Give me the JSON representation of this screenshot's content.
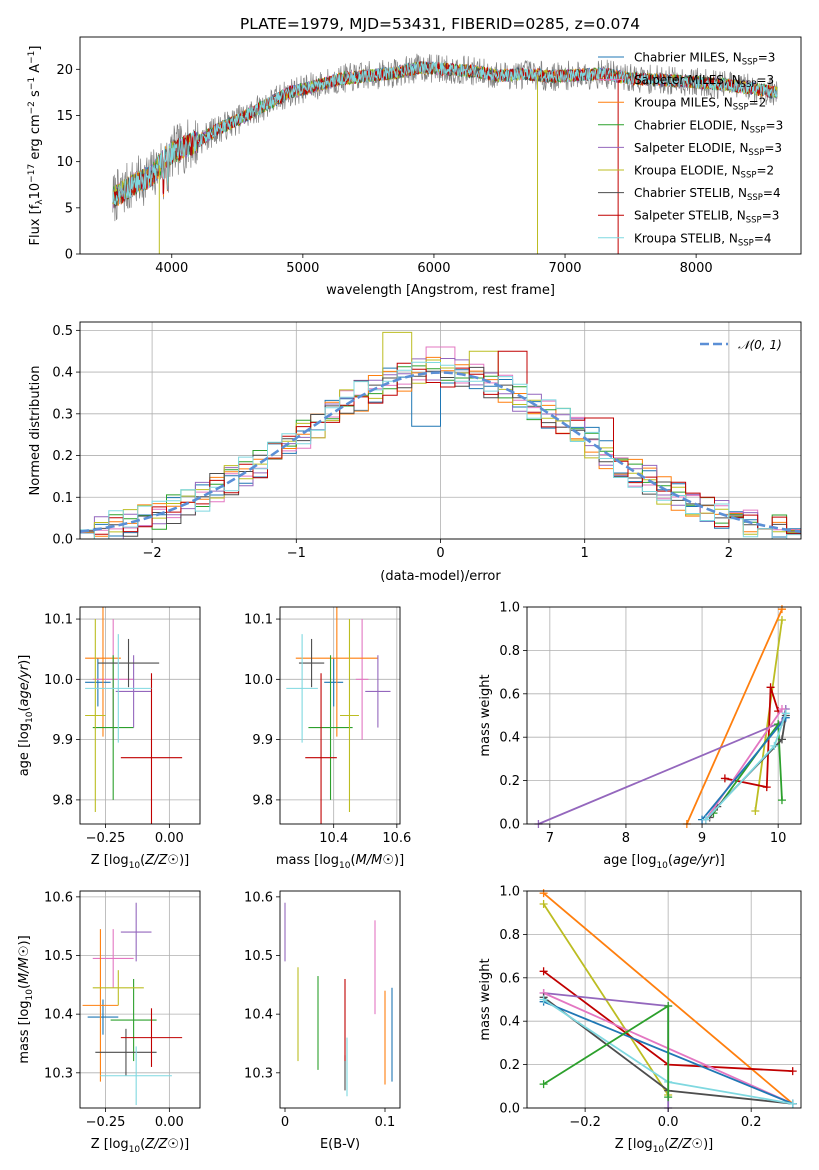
{
  "figure_title": "PLATE=1979, MJD=53431, FIBERID=0285, z=0.074",
  "colors": {
    "Chabrier MILES": "#1f77b4",
    "Salpeter MILES": "#e377c2",
    "Kroupa MILES": "#ff7f0e",
    "Chabrier ELODIE": "#2ca02c",
    "Salpeter ELODIE": "#9467bd",
    "Kroupa ELODIE": "#bcbd22",
    "Chabrier STELIB": "#4d4d4d",
    "Salpeter STELIB": "#c00000",
    "Kroupa STELIB": "#7fd8e0",
    "grid": "#b0b0b0",
    "normal_curve": "#5b8fd6"
  },
  "chart_data": [
    {
      "type": "line",
      "panel": "spectrum",
      "title": "PLATE=1979, MJD=53431, FIBERID=0285, z=0.074",
      "xlabel": "wavelength [Angstrom, rest frame]",
      "ylabel_parts": [
        "Flux [f",
        "λ",
        "10",
        "−17",
        " erg cm",
        "−2",
        " s",
        "−1",
        " A",
        "−1",
        "]"
      ],
      "xlim": [
        3300,
        8800
      ],
      "ylim": [
        0,
        23.5
      ],
      "xticks": [
        4000,
        5000,
        6000,
        7000,
        8000
      ],
      "yticks": [
        0,
        5,
        10,
        15,
        20
      ],
      "grid": false,
      "legend_position": "right",
      "legend": [
        {
          "model": "Chabrier MILES",
          "nssp": "3"
        },
        {
          "model": "Salpeter MILES",
          "nssp": "3"
        },
        {
          "model": "Kroupa MILES",
          "nssp": "2"
        },
        {
          "model": "Chabrier ELODIE",
          "nssp": "3"
        },
        {
          "model": "Salpeter ELODIE",
          "nssp": "3"
        },
        {
          "model": "Kroupa ELODIE",
          "nssp": "2"
        },
        {
          "model": "Chabrier STELIB",
          "nssp": "4"
        },
        {
          "model": "Salpeter STELIB",
          "nssp": "3"
        },
        {
          "model": "Kroupa STELIB",
          "nssp": "4"
        }
      ],
      "legend_nssp_prefix": "N",
      "legend_nssp_sub": "SSP",
      "continuum": {
        "x": [
          3550,
          3700,
          3850,
          3950,
          4050,
          4200,
          4350,
          4500,
          4700,
          4900,
          5100,
          5300,
          5500,
          5700,
          5900,
          6100,
          6300,
          6500,
          6700,
          6900,
          7100,
          7300,
          7500,
          7800,
          8100,
          8400,
          8600
        ],
        "y": [
          6.0,
          7.5,
          8.5,
          10.5,
          11.3,
          12.2,
          13.5,
          14.5,
          16.0,
          17.5,
          18.2,
          19.0,
          19.3,
          19.6,
          20.2,
          20.0,
          19.8,
          19.3,
          19.5,
          19.2,
          19.4,
          19.5,
          19.0,
          18.8,
          18.5,
          18.0,
          17.5
        ]
      },
      "observed_color": "#808080",
      "dropouts": [
        {
          "model": "Kroupa ELODIE",
          "x": 3905,
          "to": 0
        },
        {
          "model": "Kroupa ELODIE",
          "x": 6790,
          "to": 0
        },
        {
          "model": "Salpeter STELIB",
          "x": 7405,
          "to": 0
        }
      ]
    },
    {
      "type": "histogram",
      "panel": "residuals",
      "xlabel": "(data-model)/error",
      "ylabel": "Normed distribution",
      "xlim": [
        -2.5,
        2.5
      ],
      "ylim": [
        0,
        0.52
      ],
      "xticks": [
        -2,
        -1,
        0,
        1,
        2
      ],
      "yticks": [
        0.0,
        0.1,
        0.2,
        0.3,
        0.4,
        0.5
      ],
      "grid": true,
      "legend_position": "top-right",
      "legend": "𝒩(0, 1)",
      "bin_width": 0.1,
      "bin_start": -2.5,
      "reference_curve": "normal(0,1)",
      "outlier_bins": [
        {
          "model": "Kroupa ELODIE",
          "x": -0.3,
          "y": 0.495
        },
        {
          "model": "Kroupa ELODIE",
          "x": 0.3,
          "y": 0.45
        },
        {
          "model": "Salpeter MILES",
          "x": 0.0,
          "y": 0.46
        },
        {
          "model": "Chabrier MILES",
          "x": -0.1,
          "y": 0.27
        },
        {
          "model": "Salpeter STELIB",
          "x": 0.5,
          "y": 0.45
        },
        {
          "model": "Salpeter STELIB",
          "x": 1.1,
          "y": 0.29
        }
      ]
    },
    {
      "type": "errorbar",
      "panel": "age_vs_Z",
      "xlabel": "Z [log10(Z/Z☉)]",
      "ylabel": "age  [log10(age/yr)]",
      "xlim": [
        -0.35,
        0.12
      ],
      "ylim": [
        9.76,
        10.12
      ],
      "xticks": [
        -0.25,
        0.0
      ],
      "xticklabels": [
        "−0.25",
        "0.00"
      ],
      "yticks": [
        9.8,
        9.9,
        10.0,
        10.1
      ],
      "grid": true,
      "points": [
        {
          "model": "Chabrier MILES",
          "x": -0.28,
          "xerr": 0.05,
          "y": 9.995,
          "yerr": 0.04
        },
        {
          "model": "Salpeter MILES",
          "x": -0.22,
          "xerr": 0.08,
          "y": 10.0,
          "yerr": 0.1
        },
        {
          "model": "Kroupa MILES",
          "x": -0.26,
          "xerr": 0.07,
          "y": 10.035,
          "yerr": 0.13
        },
        {
          "model": "Chabrier ELODIE",
          "x": -0.22,
          "xerr": 0.08,
          "y": 9.92,
          "yerr": 0.12
        },
        {
          "model": "Salpeter ELODIE",
          "x": -0.14,
          "xerr": 0.07,
          "y": 9.98,
          "yerr": 0.06
        },
        {
          "model": "Kroupa ELODIE",
          "x": -0.29,
          "xerr": 0.04,
          "y": 9.94,
          "yerr": 0.16
        },
        {
          "model": "Chabrier STELIB",
          "x": -0.16,
          "xerr": 0.12,
          "y": 10.027,
          "yerr": 0.04
        },
        {
          "model": "Salpeter STELIB",
          "x": -0.07,
          "xerr": 0.12,
          "y": 9.87,
          "yerr": 0.14
        },
        {
          "model": "Kroupa STELIB",
          "x": -0.2,
          "xerr": 0.13,
          "y": 9.985,
          "yerr": 0.09
        }
      ]
    },
    {
      "type": "errorbar",
      "panel": "age_vs_mass",
      "xlabel": "mass [log10(M/M☉)]",
      "ylabel": "",
      "xlim": [
        10.23,
        10.61
      ],
      "ylim": [
        9.76,
        10.12
      ],
      "xticks": [
        10.4,
        10.6
      ],
      "yticks": [
        9.8,
        9.9,
        10.0,
        10.1
      ],
      "grid": true,
      "points": [
        {
          "model": "Chabrier MILES",
          "x": 10.4,
          "xerr": 0.03,
          "y": 9.995,
          "yerr": 0.04
        },
        {
          "model": "Salpeter MILES",
          "x": 10.49,
          "xerr": 0.02,
          "y": 10.0,
          "yerr": 0.1
        },
        {
          "model": "Kroupa MILES",
          "x": 10.41,
          "xerr": 0.13,
          "y": 10.035,
          "yerr": 0.13
        },
        {
          "model": "Chabrier ELODIE",
          "x": 10.39,
          "xerr": 0.07,
          "y": 9.92,
          "yerr": 0.12
        },
        {
          "model": "Salpeter ELODIE",
          "x": 10.54,
          "xerr": 0.04,
          "y": 9.98,
          "yerr": 0.06
        },
        {
          "model": "Kroupa ELODIE",
          "x": 10.45,
          "xerr": 0.03,
          "y": 9.94,
          "yerr": 0.16
        },
        {
          "model": "Chabrier STELIB",
          "x": 10.33,
          "xerr": 0.04,
          "y": 10.027,
          "yerr": 0.04
        },
        {
          "model": "Salpeter STELIB",
          "x": 10.36,
          "xerr": 0.05,
          "y": 9.87,
          "yerr": 0.14
        },
        {
          "model": "Kroupa STELIB",
          "x": 10.3,
          "xerr": 0.05,
          "y": 9.985,
          "yerr": 0.09
        }
      ]
    },
    {
      "type": "line",
      "panel": "weight_vs_age",
      "xlabel": "age  [log10(age/yr)]",
      "ylabel": "mass weight",
      "xlim": [
        6.7,
        10.3
      ],
      "ylim": [
        0,
        1.0
      ],
      "xticks": [
        7,
        8,
        9,
        10
      ],
      "yticks": [
        0.0,
        0.2,
        0.4,
        0.6,
        0.8,
        1.0
      ],
      "grid": true,
      "series": [
        {
          "model": "Kroupa MILES",
          "x": [
            8.8,
            10.05
          ],
          "y": [
            0.0,
            0.99
          ]
        },
        {
          "model": "Kroupa ELODIE",
          "x": [
            9.7,
            10.05
          ],
          "y": [
            0.06,
            0.94
          ]
        },
        {
          "model": "Salpeter ELODIE",
          "x": [
            6.85,
            10.05,
            10.1
          ],
          "y": [
            0.0,
            0.47,
            0.53
          ]
        },
        {
          "model": "Salpeter STELIB",
          "x": [
            9.3,
            9.85,
            9.9,
            10.0
          ],
          "y": [
            0.21,
            0.17,
            0.63,
            0.52
          ]
        },
        {
          "model": "Chabrier ELODIE",
          "x": [
            9.15,
            10.0,
            10.05
          ],
          "y": [
            0.05,
            0.46,
            0.11
          ]
        },
        {
          "model": "Chabrier STELIB",
          "x": [
            9.1,
            9.2,
            10.05,
            10.1
          ],
          "y": [
            0.03,
            0.08,
            0.39,
            0.5
          ]
        },
        {
          "model": "Salpeter MILES",
          "x": [
            9.05,
            10.05
          ],
          "y": [
            0.02,
            0.53
          ]
        },
        {
          "model": "Chabrier MILES",
          "x": [
            9.0,
            10.1
          ],
          "y": [
            0.02,
            0.49
          ]
        },
        {
          "model": "Kroupa STELIB",
          "x": [
            9.05,
            9.95,
            10.1
          ],
          "y": [
            0.02,
            0.36,
            0.51
          ]
        }
      ]
    },
    {
      "type": "errorbar",
      "panel": "mass_vs_Z",
      "xlabel": "Z [log10(Z/Z☉)]",
      "ylabel": "mass [log10(M/M☉)]",
      "xlim": [
        -0.35,
        0.12
      ],
      "ylim": [
        10.24,
        10.61
      ],
      "xticks": [
        -0.25,
        0.0
      ],
      "xticklabels": [
        "−0.25",
        "0.00"
      ],
      "yticks": [
        10.3,
        10.4,
        10.5,
        10.6
      ],
      "grid": true,
      "points": [
        {
          "model": "Chabrier MILES",
          "x": -0.26,
          "xerr": 0.06,
          "y": 10.395,
          "yerr": 0.03
        },
        {
          "model": "Salpeter MILES",
          "x": -0.22,
          "xerr": 0.08,
          "y": 10.495,
          "yerr": 0.05
        },
        {
          "model": "Kroupa MILES",
          "x": -0.27,
          "xerr": 0.07,
          "y": 10.415,
          "yerr": 0.13
        },
        {
          "model": "Chabrier ELODIE",
          "x": -0.14,
          "xerr": 0.09,
          "y": 10.39,
          "yerr": 0.07
        },
        {
          "model": "Salpeter ELODIE",
          "x": -0.13,
          "xerr": 0.06,
          "y": 10.54,
          "yerr": 0.05
        },
        {
          "model": "Kroupa ELODIE",
          "x": -0.2,
          "xerr": 0.1,
          "y": 10.445,
          "yerr": 0.03
        },
        {
          "model": "Chabrier STELIB",
          "x": -0.17,
          "xerr": 0.12,
          "y": 10.335,
          "yerr": 0.04
        },
        {
          "model": "Salpeter STELIB",
          "x": -0.07,
          "xerr": 0.12,
          "y": 10.36,
          "yerr": 0.05
        },
        {
          "model": "Kroupa STELIB",
          "x": -0.13,
          "xerr": 0.14,
          "y": 10.295,
          "yerr": 0.05
        }
      ]
    },
    {
      "type": "errorbar",
      "panel": "mass_vs_EBV",
      "xlabel": "E(B-V)",
      "ylabel": "",
      "xlim": [
        -0.005,
        0.115
      ],
      "ylim": [
        10.24,
        10.61
      ],
      "xticks": [
        0.0,
        0.1
      ],
      "yticks": [
        10.3,
        10.4,
        10.5,
        10.6
      ],
      "grid": false,
      "points": [
        {
          "model": "Chabrier MILES",
          "x": 0.107,
          "y": 10.365,
          "yerr": 0.08
        },
        {
          "model": "Salpeter MILES",
          "x": 0.09,
          "y": 10.48,
          "yerr": 0.08
        },
        {
          "model": "Kroupa MILES",
          "x": 0.1,
          "y": 10.36,
          "yerr": 0.08
        },
        {
          "model": "Chabrier ELODIE",
          "x": 0.033,
          "y": 10.385,
          "yerr": 0.08
        },
        {
          "model": "Salpeter ELODIE",
          "x": 0.0,
          "y": 10.54,
          "yerr": 0.05
        },
        {
          "model": "Kroupa ELODIE",
          "x": 0.013,
          "y": 10.4,
          "yerr": 0.08
        },
        {
          "model": "Chabrier STELIB",
          "x": 0.06,
          "y": 10.3,
          "yerr": 0.03
        },
        {
          "model": "Salpeter STELIB",
          "x": 0.06,
          "y": 10.39,
          "yerr": 0.07
        },
        {
          "model": "Kroupa STELIB",
          "x": 0.062,
          "y": 10.31,
          "yerr": 0.05
        }
      ]
    },
    {
      "type": "line",
      "panel": "weight_vs_Z",
      "xlabel": "Z [log10(Z/Z☉)]",
      "ylabel": "mass weight",
      "xlim": [
        -0.34,
        0.32
      ],
      "ylim": [
        0,
        1.0
      ],
      "xticks": [
        -0.2,
        0.0,
        0.2
      ],
      "xticklabels": [
        "−0.2",
        "0.0",
        "0.2"
      ],
      "yticks": [
        0.0,
        0.2,
        0.4,
        0.6,
        0.8,
        1.0
      ],
      "grid": true,
      "series": [
        {
          "model": "Kroupa MILES",
          "x": [
            -0.3,
            0.3
          ],
          "y": [
            0.99,
            0.02
          ]
        },
        {
          "model": "Kroupa ELODIE",
          "x": [
            -0.3,
            0.0
          ],
          "y": [
            0.94,
            0.06
          ]
        },
        {
          "model": "Salpeter STELIB",
          "x": [
            -0.3,
            0.0,
            0.3
          ],
          "y": [
            0.63,
            0.2,
            0.17
          ]
        },
        {
          "model": "Salpeter ELODIE",
          "x": [
            -0.3,
            0.0,
            0.0
          ],
          "y": [
            0.53,
            0.47,
            0.0
          ]
        },
        {
          "model": "Salpeter MILES",
          "x": [
            -0.3,
            0.3
          ],
          "y": [
            0.53,
            0.02
          ]
        },
        {
          "model": "Chabrier STELIB",
          "x": [
            -0.3,
            0.0,
            0.3
          ],
          "y": [
            0.51,
            0.08,
            0.02
          ]
        },
        {
          "model": "Chabrier MILES",
          "x": [
            -0.3,
            0.3
          ],
          "y": [
            0.49,
            0.02
          ]
        },
        {
          "model": "Kroupa STELIB",
          "x": [
            -0.3,
            0.0,
            0.3
          ],
          "y": [
            0.5,
            0.12,
            0.02
          ]
        },
        {
          "model": "Chabrier ELODIE",
          "x": [
            -0.3,
            0.0,
            0.0
          ],
          "y": [
            0.11,
            0.47,
            0.05
          ]
        }
      ]
    }
  ]
}
